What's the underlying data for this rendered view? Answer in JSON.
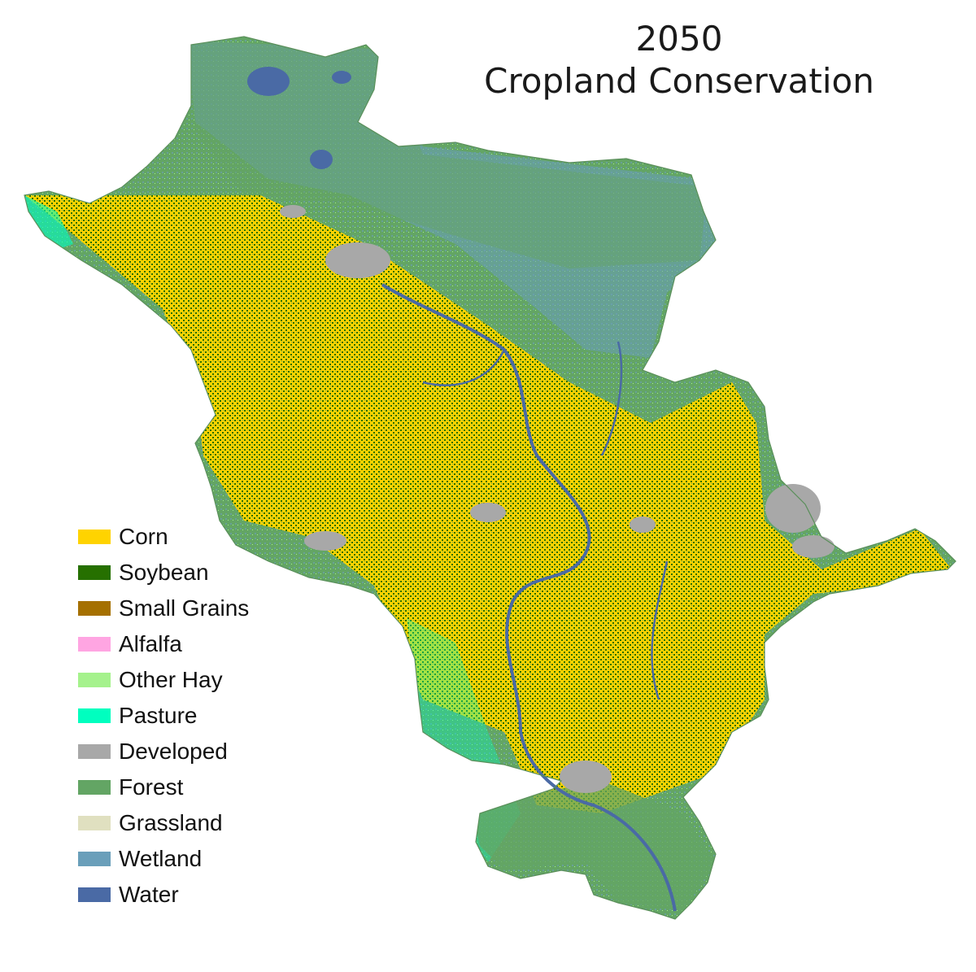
{
  "title": {
    "year": "2050",
    "scenario": "Cropland Conservation"
  },
  "legend": [
    {
      "label": "Corn",
      "color": "#ffd300"
    },
    {
      "label": "Soybean",
      "color": "#267000"
    },
    {
      "label": "Small Grains",
      "color": "#a57000"
    },
    {
      "label": "Alfalfa",
      "color": "#ffa5e2"
    },
    {
      "label": "Other Hay",
      "color": "#a5f28c"
    },
    {
      "label": "Pasture",
      "color": "#00ffbf"
    },
    {
      "label": "Developed",
      "color": "#a8a8a8"
    },
    {
      "label": "Forest",
      "color": "#63a564"
    },
    {
      "label": "Grassland",
      "color": "#e0e0c0"
    },
    {
      "label": "Wetland",
      "color": "#6a9fba"
    },
    {
      "label": "Water",
      "color": "#4a6aa5"
    }
  ]
}
